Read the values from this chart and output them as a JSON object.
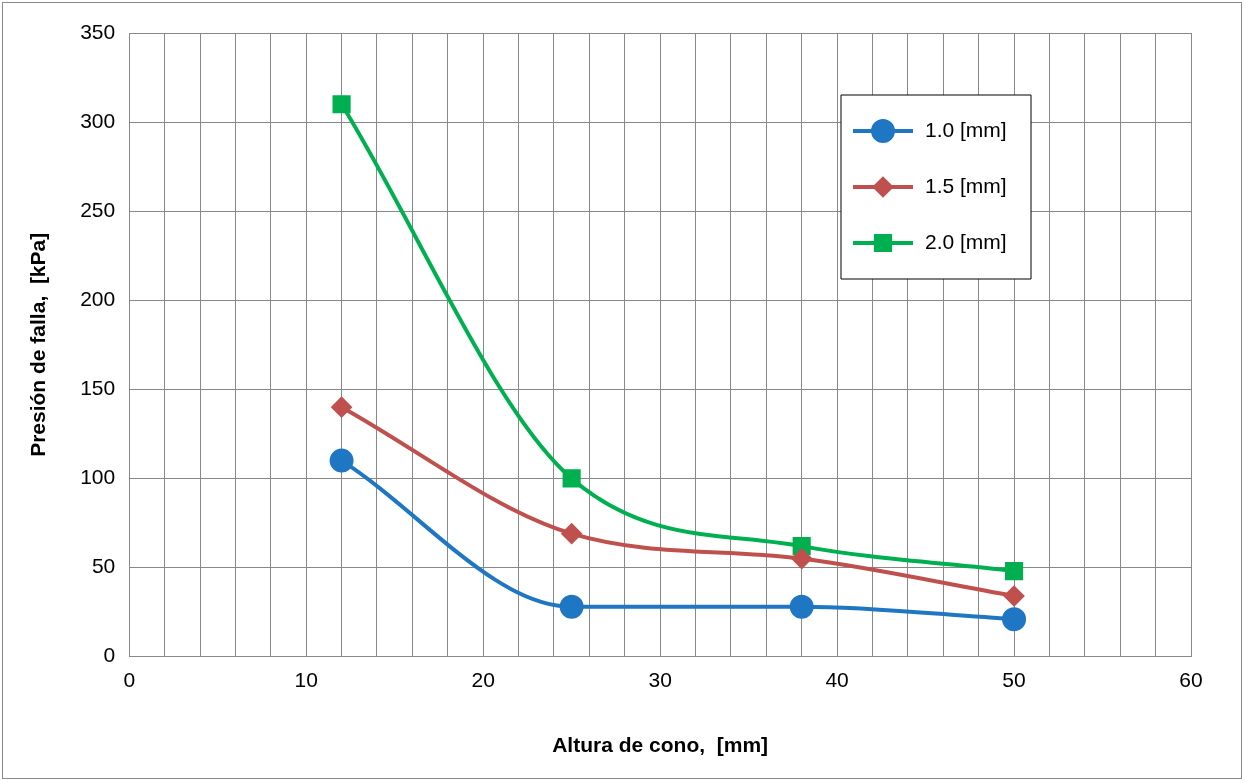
{
  "chart_data": {
    "type": "line",
    "xlabel": "Altura de cono,  [mm]",
    "ylabel": "Presión de falla,  [kPa]",
    "xlim": [
      0,
      60
    ],
    "xticks": [
      0,
      {
        "value": 2,
        "label": null
      },
      {
        "value": 4,
        "label": null
      },
      {
        "value": 6,
        "label": null
      },
      {
        "value": 8,
        "label": null
      },
      10,
      {
        "value": 12,
        "label": null
      },
      {
        "value": 14,
        "label": null
      },
      {
        "value": 16,
        "label": null
      },
      {
        "value": 18,
        "label": null
      },
      20,
      {
        "value": 22,
        "label": null
      },
      {
        "value": 24,
        "label": null
      },
      {
        "value": 26,
        "label": null
      },
      {
        "value": 28,
        "label": null
      },
      30,
      {
        "value": 32,
        "label": null
      },
      {
        "value": 34,
        "label": null
      },
      {
        "value": 36,
        "label": null
      },
      {
        "value": 38,
        "label": null
      },
      40,
      {
        "value": 42,
        "label": null
      },
      {
        "value": 44,
        "label": null
      },
      {
        "value": 46,
        "label": null
      },
      {
        "value": 48,
        "label": null
      },
      50,
      {
        "value": 52,
        "label": null
      },
      {
        "value": 54,
        "label": null
      },
      {
        "value": 56,
        "label": null
      },
      {
        "value": 58,
        "label": null
      },
      60
    ],
    "ylim": [
      0,
      350
    ],
    "yticks": [
      0,
      50,
      100,
      150,
      200,
      250,
      300,
      350
    ],
    "grid": true,
    "legend": "top right",
    "line_style": "solid",
    "x": [
      12,
      25,
      38,
      50
    ],
    "series": [
      {
        "name": "1.0 [mm]",
        "color": "#1f77c4",
        "marker": "circle",
        "values": [
          110,
          28,
          28,
          21
        ]
      },
      {
        "name": "1.5 [mm]",
        "color": "#c0504d",
        "marker": "diamond",
        "values": [
          140,
          69,
          55,
          34
        ]
      },
      {
        "name": "2.0 [mm]",
        "color": "#00b050",
        "marker": "square",
        "values": [
          310,
          100,
          62,
          48
        ]
      }
    ]
  }
}
